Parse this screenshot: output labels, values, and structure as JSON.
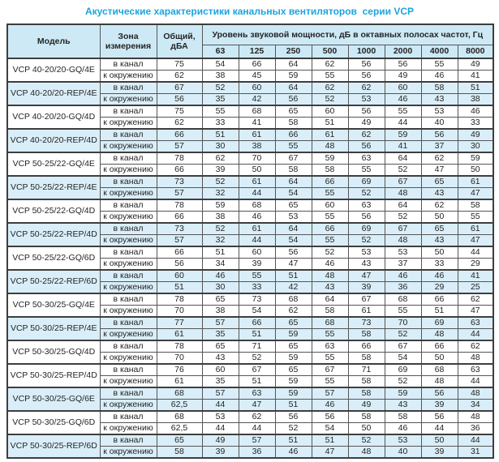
{
  "title": "Акустические характеристики канальных вентиляторов  серии VCP",
  "colors": {
    "title": "#1ba5de",
    "header_bg": "#cde9f6",
    "row_highlight_bg": "#d9eef8",
    "row_plain_bg": "#ffffff",
    "border": "#3e3e3e",
    "text": "#252525"
  },
  "table": {
    "headers": {
      "model": "Модель",
      "zone": "Зона измерения",
      "total": "Общий, дБА",
      "bands_group": "Уровень звуковой мощности, дБ в октавных полосах частот, Гц",
      "frequencies": [
        "63",
        "125",
        "250",
        "500",
        "1000",
        "2000",
        "4000",
        "8000"
      ]
    },
    "rows": [
      {
        "model": "VCP 40-20/20-GQ/4E",
        "highlight": false,
        "measurements": [
          {
            "zone": "в канал",
            "total": "75",
            "bands": [
              54,
              66,
              64,
              62,
              56,
              56,
              55,
              49
            ]
          },
          {
            "zone": "к окружению",
            "total": "62",
            "bands": [
              38,
              45,
              59,
              55,
              56,
              49,
              46,
              41
            ]
          }
        ]
      },
      {
        "model": "VCP 40-20/20-REP/4E",
        "highlight": true,
        "measurements": [
          {
            "zone": "в канал",
            "total": "67",
            "bands": [
              52,
              60,
              64,
              62,
              62,
              60,
              58,
              51
            ]
          },
          {
            "zone": "к окружению",
            "total": "56",
            "bands": [
              35,
              42,
              56,
              52,
              53,
              46,
              43,
              38
            ]
          }
        ]
      },
      {
        "model": "VCP 40-20/20-GQ/4D",
        "highlight": false,
        "measurements": [
          {
            "zone": "в канал",
            "total": "75",
            "bands": [
              55,
              68,
              65,
              60,
              56,
              55,
              53,
              46
            ]
          },
          {
            "zone": "к окружению",
            "total": "62",
            "bands": [
              33,
              41,
              58,
              51,
              49,
              44,
              40,
              33
            ]
          }
        ]
      },
      {
        "model": "VCP 40-20/20-REP/4D",
        "highlight": true,
        "measurements": [
          {
            "zone": "в канал",
            "total": "66",
            "bands": [
              51,
              61,
              66,
              61,
              62,
              59,
              56,
              49
            ]
          },
          {
            "zone": "к окружению",
            "total": "57",
            "bands": [
              30,
              38,
              55,
              48,
              56,
              41,
              37,
              30
            ]
          }
        ]
      },
      {
        "model": "VCP 50-25/22-GQ/4E",
        "highlight": false,
        "measurements": [
          {
            "zone": "в канал",
            "total": "78",
            "bands": [
              62,
              70,
              67,
              59,
              63,
              64,
              62,
              59
            ]
          },
          {
            "zone": "к окружению",
            "total": "66",
            "bands": [
              39,
              50,
              58,
              58,
              55,
              52,
              47,
              50
            ]
          }
        ]
      },
      {
        "model": "VCP 50-25/22-REP/4E",
        "highlight": true,
        "measurements": [
          {
            "zone": "в канал",
            "total": "73",
            "bands": [
              52,
              61,
              64,
              66,
              69,
              67,
              65,
              61
            ]
          },
          {
            "zone": "к окружению",
            "total": "57",
            "bands": [
              32,
              44,
              54,
              55,
              52,
              48,
              43,
              47
            ]
          }
        ]
      },
      {
        "model": "VCP 50-25/22-GQ/4D",
        "highlight": false,
        "measurements": [
          {
            "zone": "в канал",
            "total": "78",
            "bands": [
              59,
              68,
              65,
              60,
              63,
              64,
              62,
              58
            ]
          },
          {
            "zone": "к окружению",
            "total": "66",
            "bands": [
              38,
              46,
              53,
              55,
              56,
              52,
              50,
              55
            ]
          }
        ]
      },
      {
        "model": "VCP 50-25/22-REP/4D",
        "highlight": true,
        "measurements": [
          {
            "zone": "в канал",
            "total": "73",
            "bands": [
              52,
              61,
              64,
              66,
              69,
              67,
              65,
              61
            ]
          },
          {
            "zone": "к окружению",
            "total": "57",
            "bands": [
              32,
              44,
              54,
              55,
              52,
              48,
              43,
              47
            ]
          }
        ]
      },
      {
        "model": "VCP 50-25/22-GQ/6D",
        "highlight": false,
        "measurements": [
          {
            "zone": "в канал",
            "total": "66",
            "bands": [
              51,
              60,
              56,
              52,
              53,
              53,
              50,
              44
            ]
          },
          {
            "zone": "к окружению",
            "total": "56",
            "bands": [
              34,
              39,
              47,
              46,
              43,
              37,
              33,
              29
            ]
          }
        ]
      },
      {
        "model": "VCP 50-25/22-REP/6D",
        "highlight": true,
        "measurements": [
          {
            "zone": "в канал",
            "total": "60",
            "bands": [
              46,
              55,
              51,
              48,
              47,
              46,
              46,
              41
            ]
          },
          {
            "zone": "к окружению",
            "total": "51",
            "bands": [
              30,
              33,
              42,
              43,
              39,
              36,
              29,
              25
            ]
          }
        ]
      },
      {
        "model": "VCP 50-30/25-GQ/4E",
        "highlight": false,
        "measurements": [
          {
            "zone": "в канал",
            "total": "78",
            "bands": [
              65,
              73,
              68,
              64,
              67,
              68,
              66,
              62
            ]
          },
          {
            "zone": "к окружению",
            "total": "70",
            "bands": [
              38,
              54,
              62,
              58,
              61,
              55,
              51,
              47
            ]
          }
        ]
      },
      {
        "model": "VCP 50-30/25-REP/4E",
        "highlight": true,
        "measurements": [
          {
            "zone": "в канал",
            "total": "77",
            "bands": [
              57,
              66,
              65,
              68,
              73,
              70,
              69,
              63
            ]
          },
          {
            "zone": "к окружению",
            "total": "61",
            "bands": [
              35,
              51,
              59,
              55,
              58,
              52,
              48,
              44
            ]
          }
        ]
      },
      {
        "model": "VCP 50-30/25-GQ/4D",
        "highlight": false,
        "measurements": [
          {
            "zone": "в канал",
            "total": "78",
            "bands": [
              65,
              71,
              65,
              63,
              66,
              67,
              66,
              62
            ]
          },
          {
            "zone": "к окружению",
            "total": "70",
            "bands": [
              43,
              52,
              59,
              55,
              58,
              54,
              50,
              48
            ]
          }
        ]
      },
      {
        "model": "VCP 50-30/25-REP/4D",
        "highlight": false,
        "measurements": [
          {
            "zone": "в канал",
            "total": "76",
            "bands": [
              60,
              67,
              65,
              67,
              71,
              69,
              68,
              63
            ]
          },
          {
            "zone": "к окружению",
            "total": "61",
            "bands": [
              35,
              51,
              59,
              55,
              58,
              52,
              48,
              44
            ]
          }
        ]
      },
      {
        "model": "VCP 50-30/25-GQ/6E",
        "highlight": true,
        "measurements": [
          {
            "zone": "в канал",
            "total": "68",
            "bands": [
              57,
              63,
              59,
              57,
              58,
              59,
              56,
              48
            ]
          },
          {
            "zone": "к окружению",
            "total": "62,5",
            "bands": [
              44,
              47,
              51,
              46,
              49,
              43,
              39,
              34
            ]
          }
        ]
      },
      {
        "model": "VCP 50-30/25-GQ/6D",
        "highlight": false,
        "measurements": [
          {
            "zone": "в канал",
            "total": "68",
            "bands": [
              53,
              62,
              56,
              56,
              58,
              58,
              56,
              48
            ]
          },
          {
            "zone": "к окружению",
            "total": "62,5",
            "bands": [
              44,
              44,
              52,
              54,
              50,
              46,
              44,
              36
            ]
          }
        ]
      },
      {
        "model": "VCP 50-30/25-REP/6D",
        "highlight": true,
        "measurements": [
          {
            "zone": "в канал",
            "total": "65",
            "bands": [
              49,
              57,
              51,
              51,
              52,
              53,
              50,
              44
            ]
          },
          {
            "zone": "к окружению",
            "total": "58",
            "bands": [
              39,
              36,
              46,
              47,
              48,
              40,
              39,
              31
            ]
          }
        ]
      }
    ]
  }
}
